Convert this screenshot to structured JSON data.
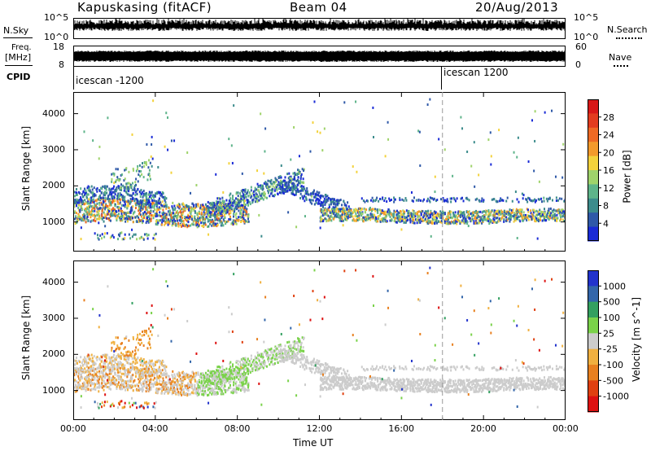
{
  "header": {
    "station": "Kapuskasing (fitACF)",
    "beam": "Beam 04",
    "date": "20/Aug/2013"
  },
  "top_strip": {
    "nsky_label": "N.Sky",
    "nsearch_label": "N.Search",
    "freq_label_1": "Freq.",
    "freq_label_2": "[MHz]",
    "nave_label": "Nave",
    "cpid_label": "CPID",
    "nsky_ticks": [
      "10^5",
      "10^0"
    ],
    "nsearch_ticks": [
      "10^5",
      "10^0"
    ],
    "freq_ticks": [
      "18",
      "8"
    ],
    "nave_ticks": [
      "60",
      "0"
    ],
    "cpid_entries": [
      {
        "time_h": 0.0,
        "label": "icescan -1200"
      },
      {
        "time_h": 18.0,
        "label": "icescan 1200"
      }
    ]
  },
  "chart_data": [
    {
      "type": "heatmap",
      "title": "",
      "xlabel": "Time UT",
      "ylabel": "Slant Range [km]",
      "colorbar_label": "Power [dB]",
      "xlim": [
        0,
        24
      ],
      "ylim": [
        180,
        4600
      ],
      "x_ticks": [
        "00:00",
        "04:00",
        "08:00",
        "12:00",
        "16:00",
        "20:00",
        "00:00"
      ],
      "y_ticks": [
        1000,
        2000,
        3000,
        4000
      ],
      "colorbar_ticks": [
        "4",
        "8",
        "12",
        "16",
        "20",
        "24",
        "28"
      ],
      "colorbar_range": [
        0,
        30
      ],
      "colors": [
        "#1a2bd6",
        "#2f59a8",
        "#3c8c8c",
        "#5eb48a",
        "#9fd36b",
        "#f3d23c",
        "#f39a2b",
        "#ee6a24",
        "#e23c1f",
        "#d81818"
      ]
    },
    {
      "type": "heatmap",
      "title": "",
      "xlabel": "Time UT",
      "ylabel": "Slant Range [km]",
      "colorbar_label": "Velocity [m s^-1]",
      "xlim": [
        0,
        24
      ],
      "ylim": [
        180,
        4600
      ],
      "x_ticks": [
        "00:00",
        "04:00",
        "08:00",
        "12:00",
        "16:00",
        "20:00",
        "00:00"
      ],
      "y_ticks": [
        1000,
        2000,
        3000,
        4000
      ],
      "colorbar_ticks": [
        "1000",
        "500",
        "100",
        "25",
        "-25",
        "-100",
        "-500",
        "-1000"
      ],
      "colors": [
        "#2233cc",
        "#3366aa",
        "#33a060",
        "#7ad24a",
        "#cccccc",
        "#f0b040",
        "#e88020",
        "#e04010",
        "#dd1111"
      ]
    }
  ],
  "x_axis": {
    "ticks": [
      "00:00",
      "04:00",
      "08:00",
      "12:00",
      "16:00",
      "20:00",
      "00:00"
    ],
    "label": "Time UT"
  }
}
